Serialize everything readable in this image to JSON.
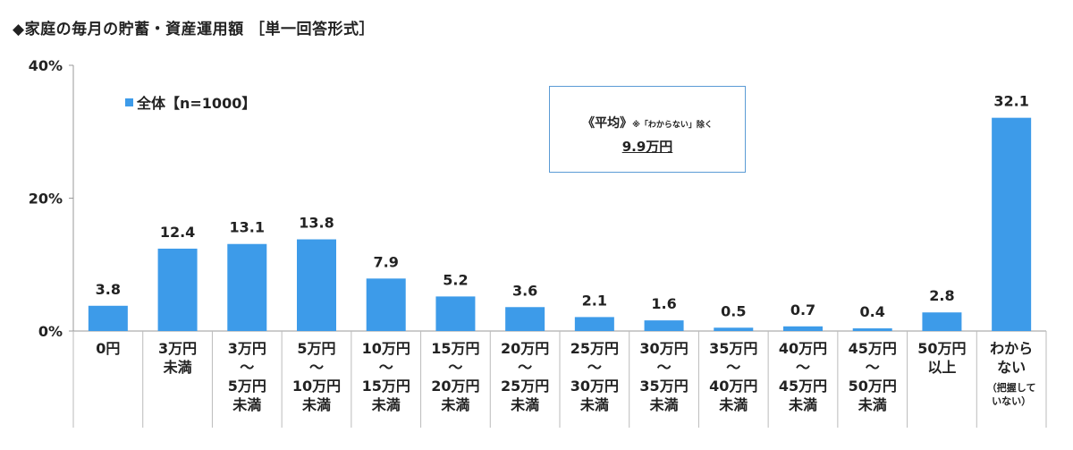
{
  "title": "◆家庭の毎月の貯蓄・資産運用額 ［単一回答形式］",
  "legend": {
    "label": "全体【n=1000】",
    "color": "#3d9be9"
  },
  "average": {
    "label": "《平均》",
    "note": "※「わからない」除く",
    "value": "9.9万円"
  },
  "chart_data": {
    "type": "bar",
    "title": "◆家庭の毎月の貯蓄・資産運用額 ［単一回答形式］",
    "xlabel": "",
    "ylabel": "",
    "ylim": [
      0,
      40
    ],
    "yticks": [
      "0%",
      "20%",
      "40%"
    ],
    "grid": false,
    "legend_position": "top-left",
    "categories": [
      [
        "0円"
      ],
      [
        "3万円",
        "未満"
      ],
      [
        "3万円",
        "～",
        "5万円",
        "未満"
      ],
      [
        "5万円",
        "～",
        "10万円",
        "未満"
      ],
      [
        "10万円",
        "～",
        "15万円",
        "未満"
      ],
      [
        "15万円",
        "～",
        "20万円",
        "未満"
      ],
      [
        "20万円",
        "～",
        "25万円",
        "未満"
      ],
      [
        "25万円",
        "～",
        "30万円",
        "未満"
      ],
      [
        "30万円",
        "～",
        "35万円",
        "未満"
      ],
      [
        "35万円",
        "～",
        "40万円",
        "未満"
      ],
      [
        "40万円",
        "～",
        "45万円",
        "未満"
      ],
      [
        "45万円",
        "～",
        "50万円",
        "未満"
      ],
      [
        "50万円",
        "以上"
      ],
      [
        "わから",
        "ない",
        "（把握して",
        "いない）"
      ]
    ],
    "series": [
      {
        "name": "全体【n=1000】",
        "values": [
          3.8,
          12.4,
          13.1,
          13.8,
          7.9,
          5.2,
          3.6,
          2.1,
          1.6,
          0.5,
          0.7,
          0.4,
          2.8,
          32.1
        ]
      }
    ]
  }
}
